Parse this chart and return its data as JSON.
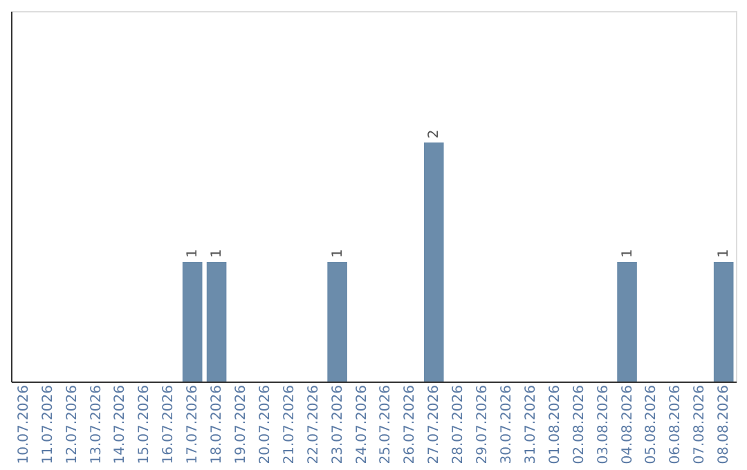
{
  "chart_data": {
    "type": "bar",
    "categories": [
      "10.07.2026",
      "11.07.2026",
      "12.07.2026",
      "13.07.2026",
      "14.07.2026",
      "15.07.2026",
      "16.07.2026",
      "17.07.2026",
      "18.07.2026",
      "19.07.2026",
      "20.07.2026",
      "21.07.2026",
      "22.07.2026",
      "23.07.2026",
      "24.07.2026",
      "25.07.2026",
      "26.07.2026",
      "27.07.2026",
      "28.07.2026",
      "29.07.2026",
      "30.07.2026",
      "31.07.2026",
      "01.08.2026",
      "02.08.2026",
      "03.08.2026",
      "04.08.2026",
      "05.08.2026",
      "06.08.2026",
      "07.08.2026",
      "08.08.2026"
    ],
    "values": [
      0,
      0,
      0,
      0,
      0,
      0,
      0,
      1,
      1,
      0,
      0,
      0,
      0,
      1,
      0,
      0,
      0,
      2,
      0,
      0,
      0,
      0,
      0,
      0,
      0,
      1,
      0,
      0,
      0,
      1
    ],
    "value_labels": [
      null,
      null,
      null,
      null,
      null,
      null,
      null,
      "1",
      "1",
      null,
      null,
      null,
      null,
      "1",
      null,
      null,
      null,
      "2",
      null,
      null,
      null,
      null,
      null,
      null,
      null,
      "1",
      null,
      null,
      null,
      "1"
    ],
    "color": "#6b8cab",
    "ylim": [
      0,
      3.1
    ],
    "tick_labels": "x",
    "grid": false
  }
}
